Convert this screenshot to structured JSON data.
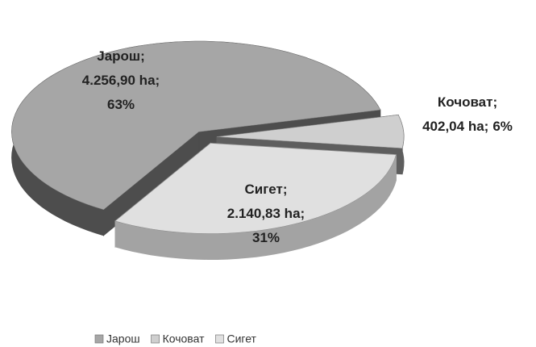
{
  "chart_data": {
    "type": "pie",
    "categories": [
      "Јарош",
      "Кочоват",
      "Сигет"
    ],
    "values": [
      4256.9,
      402.04,
      2140.83
    ],
    "value_labels": [
      "4.256,90 ha",
      "402,04 ha",
      "2.140,83 ha"
    ],
    "percents": [
      63,
      6,
      31
    ],
    "percent_labels": [
      "63%",
      "6%",
      "31%"
    ],
    "label_separator": ";",
    "colors": [
      "#a6a6a6",
      "#cfcfcf",
      "#e0e0e0"
    ],
    "side_colors": [
      "#4d4d4d",
      "#5e5e5e",
      "#a3a3a3"
    ],
    "legend": "bottom"
  }
}
